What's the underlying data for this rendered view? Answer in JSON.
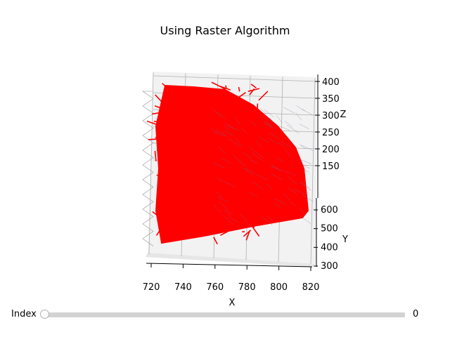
{
  "chart_data": {
    "type": "surface-3d",
    "title": "Using Raster Algorithm",
    "xlabel": "X",
    "ylabel": "Y",
    "zlabel": "Z",
    "x_ticks": [
      "720",
      "740",
      "760",
      "780",
      "800",
      "820"
    ],
    "y_ticks": [
      "300",
      "400",
      "500",
      "600"
    ],
    "z_ticks": [
      "150",
      "200",
      "250",
      "300",
      "350",
      "400"
    ],
    "xlim": [
      720,
      820
    ],
    "ylim": [
      300,
      600
    ],
    "zlim": [
      150,
      400
    ],
    "grid": true,
    "mesh_color": "#ff0000"
  },
  "slider": {
    "label": "Index",
    "value": "0",
    "fraction": 0
  },
  "colors": {
    "pane": "#f2f2f2",
    "grid": "#b0b0b0",
    "track": "#d3d3d3"
  }
}
